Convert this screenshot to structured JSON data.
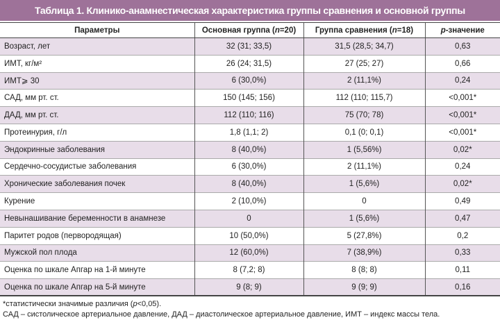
{
  "title": "Таблица 1. Клинико-анамнестическая характеристика группы сравнения и основной группы",
  "headers": {
    "param": "Параметры",
    "main_a": "Основная группа (",
    "main_n": "n",
    "main_b": "=20)",
    "comp_a": "Группа сравнения (",
    "comp_n": "n",
    "comp_b": "=18)",
    "p_a": "p",
    "p_b": "-значение"
  },
  "rows": [
    {
      "param": "Возраст, лет",
      "main": "32 (31; 33,5)",
      "comp": "31,5 (28,5;  34,7)",
      "p": "0,63"
    },
    {
      "param": "ИМТ, кг/м²",
      "main": "26 (24; 31,5)",
      "comp": "27 (25; 27)",
      "p": "0,66"
    },
    {
      "param": "ИМТ⩾ 30",
      "main": "6 (30,0%)",
      "comp": "2 (11,1%)",
      "p": "0,24"
    },
    {
      "param": "САД, мм рт. ст.",
      "main": "150 (145; 156)",
      "comp": "112 (110; 115,7)",
      "p": "<0,001*"
    },
    {
      "param": "ДАД, мм рт. ст.",
      "main": "112 (110; 116)",
      "comp": "75 (70; 78)",
      "p": "<0,001*"
    },
    {
      "param": "Протеинурия, г/л",
      "main": "1,8 (1,1; 2)",
      "comp": "0,1 (0; 0,1)",
      "p": "<0,001*"
    },
    {
      "param": "Эндокринные заболевания",
      "main": "8 (40,0%)",
      "comp": "1 (5,56%)",
      "p": "0,02*"
    },
    {
      "param": "Сердечно-сосудистые заболевания",
      "main": "6 (30,0%)",
      "comp": "2 (11,1%)",
      "p": "0,24"
    },
    {
      "param": "Хронические заболевания почек",
      "main": "8 (40,0%)",
      "comp": "1 (5,6%)",
      "p": "0,02*"
    },
    {
      "param": "Курение",
      "main": "2 (10,0%)",
      "comp": "0",
      "p": "0,49"
    },
    {
      "param": "Невынашивание беременности в анамнезе",
      "main": "0",
      "comp": "1 (5,6%)",
      "p": "0,47"
    },
    {
      "param": "Паритет родов (первородящая)",
      "main": "10 (50,0%)",
      "comp": "5 (27,8%)",
      "p": "0,2"
    },
    {
      "param": "Мужской пол плода",
      "main": "12 (60,0%)",
      "comp": "7 (38,9%)",
      "p": "0,33"
    },
    {
      "param": "Оценка по шкале Апгар на 1-й минуте",
      "main": "8 (7,2; 8)",
      "comp": "8 (8; 8)",
      "p": "0,11"
    },
    {
      "param": "Оценка по шкале Апгар на 5-й минуте",
      "main": "9 (8; 9)",
      "comp": "9 (9; 9)",
      "p": "0,16"
    }
  ],
  "notes": {
    "sig_a": "*статистически значимые различия (",
    "sig_p": "p",
    "sig_b": "<0,05).",
    "abbr": "САД – систолическое артериальное давление, ДАД – диастолическое артериальное давление, ИМТ – индекс массы тела."
  }
}
